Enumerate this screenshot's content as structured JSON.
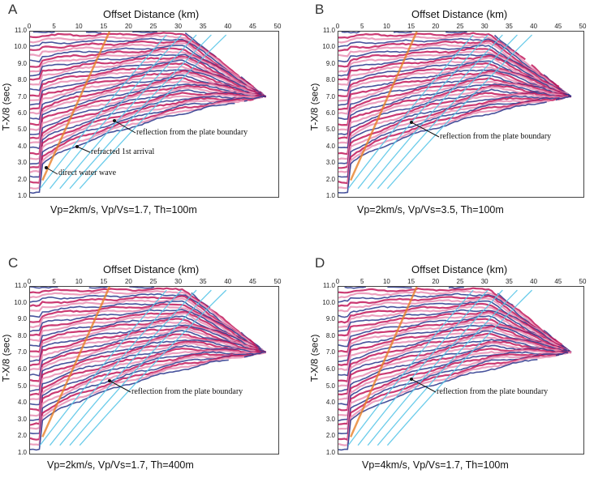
{
  "panels": [
    {
      "label": "A",
      "xlabel": "Offset Distance (km)",
      "ylabel": "T-X/8 (sec)",
      "caption": "Vp=2km/s, Vp/Vs=1.7, Th=100m",
      "annotations": [
        "reflection from the plate boundary",
        "refracted 1st arrival",
        "direct water wave"
      ]
    },
    {
      "label": "B",
      "xlabel": "Offset Distance (km)",
      "ylabel": "T-X/8 (sec)",
      "caption": "Vp=2km/s, Vp/Vs=3.5, Th=100m",
      "annotations": [
        "reflection from the plate boundary"
      ]
    },
    {
      "label": "C",
      "xlabel": "Offset Distance (km)",
      "ylabel": "T-X/8 (sec)",
      "caption": "Vp=2km/s, Vp/Vs=1.7, Th=400m",
      "annotations": [
        "reflection from the plate boundary"
      ]
    },
    {
      "label": "D",
      "xlabel": "Offset Distance (km)",
      "ylabel": "T-X/8 (sec)",
      "caption": "Vp=4km/s, Vp/Vs=1.7, Th=100m",
      "annotations": [
        "reflection from the plate boundary"
      ]
    }
  ],
  "x_ticks": [
    "0",
    "5",
    "10",
    "15",
    "20",
    "25",
    "30",
    "35",
    "40",
    "45",
    "50"
  ],
  "y_ticks": [
    "11.0",
    "10.0",
    "9.0",
    "8.0",
    "7.0",
    "6.0",
    "5.0",
    "4.0",
    "3.0",
    "2.0",
    "1.0"
  ],
  "colors": {
    "wiggle_red": "#c2185b",
    "wiggle_pink": "#e98fb4",
    "wiggle_blue": "#27348b",
    "refraction_cyan": "#5bc6e8",
    "water_wave_orange": "#e8822a"
  }
}
